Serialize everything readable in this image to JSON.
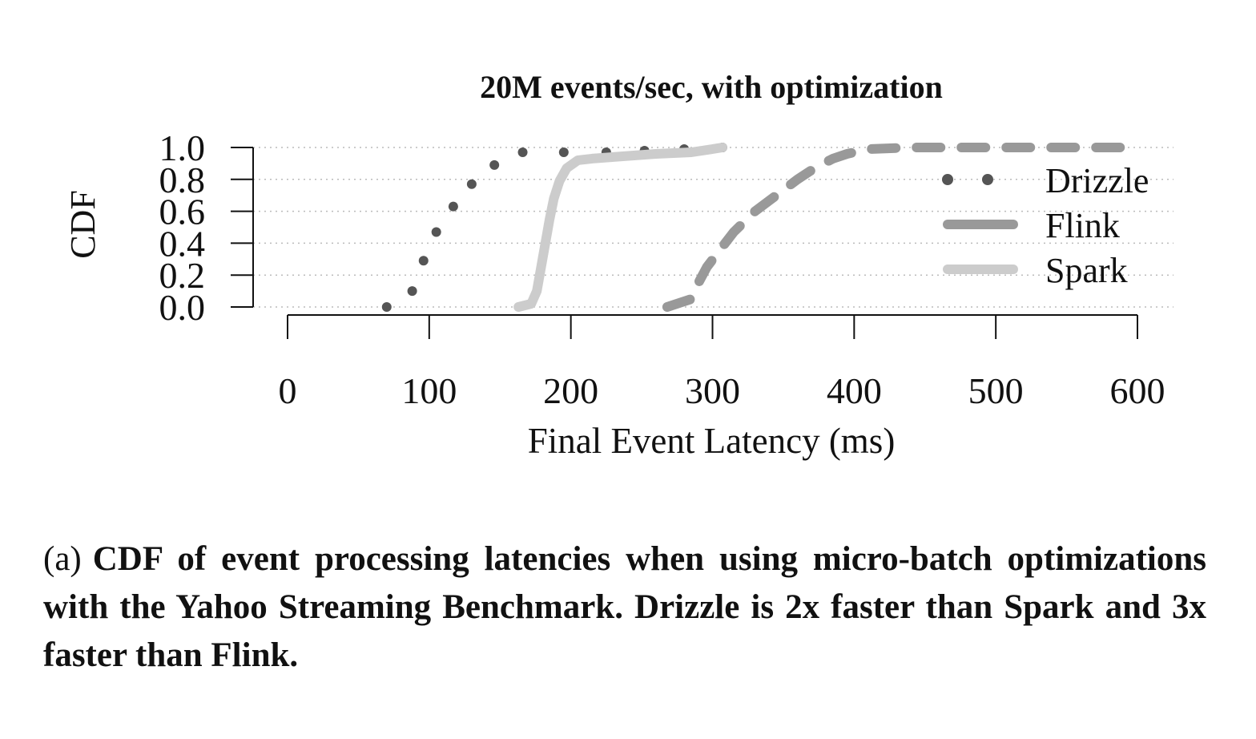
{
  "chart_data": {
    "type": "line",
    "title": "20M events/sec, with optimization",
    "xlabel": "Final Event Latency (ms)",
    "ylabel": "CDF",
    "xlim": [
      0,
      600
    ],
    "ylim": [
      0,
      1.0
    ],
    "x_ticks": [
      "0",
      "100",
      "200",
      "300",
      "400",
      "500",
      "600"
    ],
    "y_ticks": [
      "0.0",
      "0.2",
      "0.4",
      "0.6",
      "0.8",
      "1.0"
    ],
    "grid": "horizontal dotted",
    "legend_position": "right",
    "series": [
      {
        "name": "Drizzle",
        "style": "dotted",
        "color": "#555555",
        "x": [
          70,
          88,
          96,
          105,
          117,
          130,
          146,
          166,
          195,
          225,
          252,
          280,
          307
        ],
        "y": [
          0.0,
          0.1,
          0.29,
          0.47,
          0.63,
          0.77,
          0.89,
          0.97,
          0.97,
          0.97,
          0.98,
          0.99,
          1.0
        ]
      },
      {
        "name": "Flink",
        "style": "dashed",
        "color": "#999999",
        "x": [
          268,
          285,
          290,
          296,
          302,
          315,
          330,
          345,
          360,
          372,
          385,
          395,
          410,
          440,
          480,
          520,
          560,
          590
        ],
        "y": [
          0.0,
          0.05,
          0.15,
          0.25,
          0.32,
          0.47,
          0.6,
          0.7,
          0.8,
          0.87,
          0.93,
          0.96,
          0.99,
          1.0,
          1.0,
          1.0,
          1.0,
          1.0
        ]
      },
      {
        "name": "Spark",
        "style": "solid",
        "color": "#cccccc",
        "x": [
          163,
          172,
          176,
          179,
          182,
          185,
          188,
          192,
          197,
          205,
          215,
          230,
          260,
          285,
          300,
          307
        ],
        "y": [
          0.0,
          0.02,
          0.1,
          0.25,
          0.4,
          0.55,
          0.68,
          0.79,
          0.87,
          0.92,
          0.93,
          0.94,
          0.96,
          0.97,
          0.99,
          1.0
        ]
      }
    ]
  },
  "caption": {
    "tag": "(a)",
    "text": "CDF of event processing latencies when using micro-batch optimizations with the Yahoo Streaming Benchmark. Drizzle is 2x faster than Spark and 3x faster than Flink."
  }
}
